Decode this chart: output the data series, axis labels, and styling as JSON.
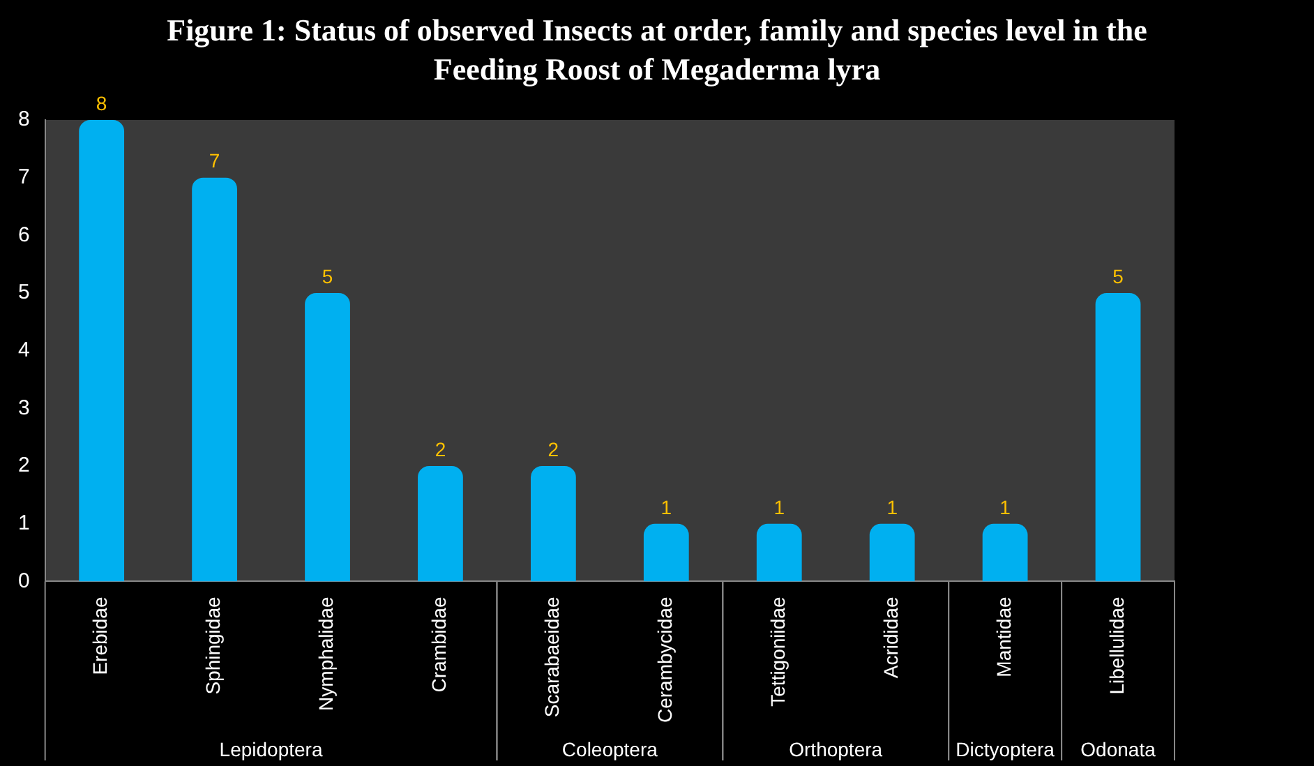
{
  "chart_data": {
    "type": "bar",
    "title": "Figure 1: Status of observed Insects at order, family and species level in the Feeding Roost of Megaderma lyra",
    "categories": [
      "Erebidae",
      "Sphingidae",
      "Nymphalidae",
      "Crambidae",
      "Scarabaeidae",
      "Cerambycidae",
      "Tettigoniidae",
      "Acrididae",
      "Mantidae",
      "Libellulidae"
    ],
    "values": [
      8,
      7,
      5,
      2,
      2,
      1,
      1,
      1,
      1,
      5
    ],
    "color": "#00b0f0",
    "ylim": [
      0,
      8
    ],
    "yticks": [
      0,
      1,
      2,
      3,
      4,
      5,
      6,
      7,
      8
    ],
    "grid": false,
    "legend": false,
    "data_labels": true,
    "annotations": [
      "Lepidoptera",
      "Coleoptera",
      "Orthoptera",
      "Dictyoptera",
      "Odonata"
    ]
  }
}
